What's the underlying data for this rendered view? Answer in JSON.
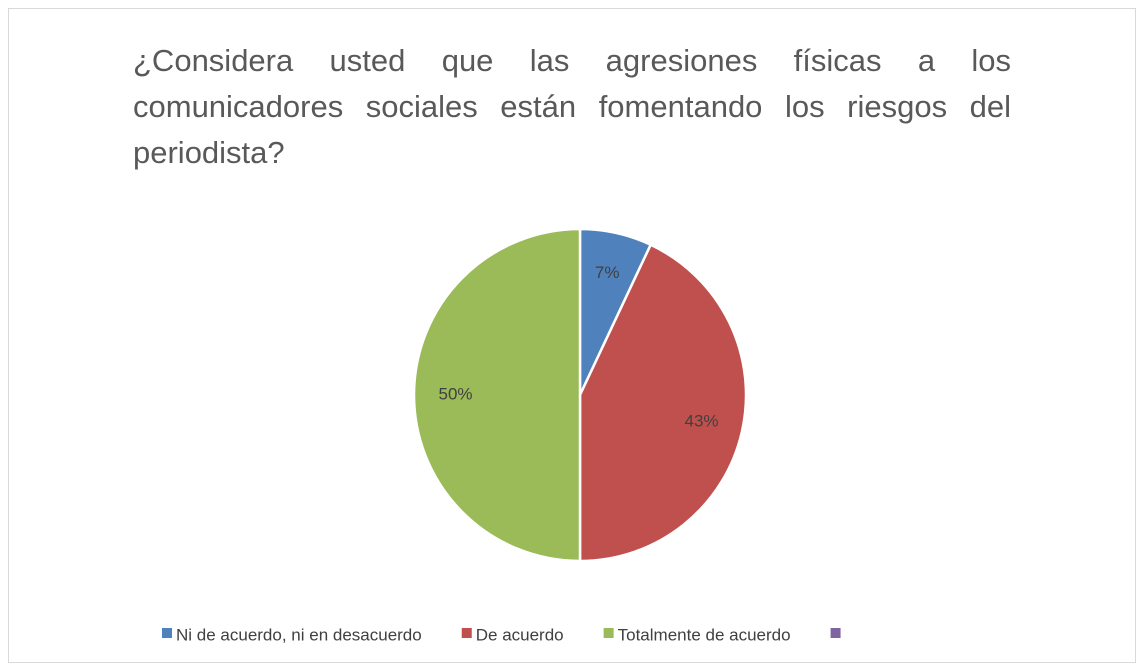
{
  "chart_data": {
    "type": "pie",
    "title": "¿Considera usted que las agresiones físicas a los comunicadores sociales están fomentando los riesgos del periodista?",
    "categories": [
      "Ni de acuerdo, ni en desacuerdo",
      "De acuerdo",
      "Totalmente de acuerdo",
      null
    ],
    "values": [
      7,
      43,
      50,
      null
    ],
    "value_labels": [
      "7%",
      "43%",
      "50%",
      null
    ],
    "colors": [
      "#4f81bd",
      "#c0504d",
      "#9bbb59",
      "#8064a2"
    ],
    "legend": "bottom"
  }
}
